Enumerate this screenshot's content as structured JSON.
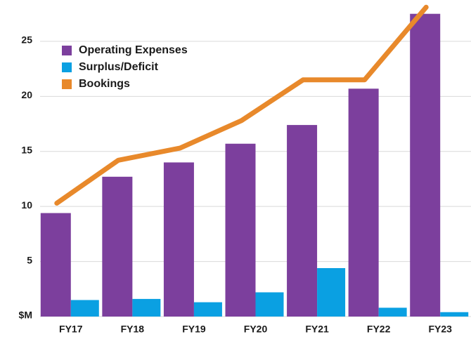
{
  "chart_data": {
    "type": "bar_line",
    "categories": [
      "FY17",
      "FY18",
      "FY19",
      "FY20",
      "FY21",
      "FY22",
      "FY23"
    ],
    "series": [
      {
        "name": "Operating Expenses",
        "color": "#7c3f9d",
        "kind": "bar",
        "values": [
          9.4,
          12.7,
          14.0,
          15.7,
          17.4,
          20.7,
          27.5
        ]
      },
      {
        "name": "Surplus/Deficit",
        "color": "#0aa0e2",
        "kind": "bar",
        "values": [
          1.5,
          1.6,
          1.3,
          2.2,
          4.4,
          0.8,
          0.4
        ]
      },
      {
        "name": "Bookings",
        "color": "#e8892b",
        "kind": "line",
        "values": [
          10.3,
          14.2,
          15.3,
          17.8,
          21.5,
          21.5,
          28.1
        ]
      }
    ],
    "ylim": [
      0,
      28.5
    ],
    "yticks": [
      {
        "value": 0,
        "label": "$M"
      },
      5,
      10,
      15,
      20,
      25
    ],
    "grid": true,
    "legend": "top-left"
  }
}
